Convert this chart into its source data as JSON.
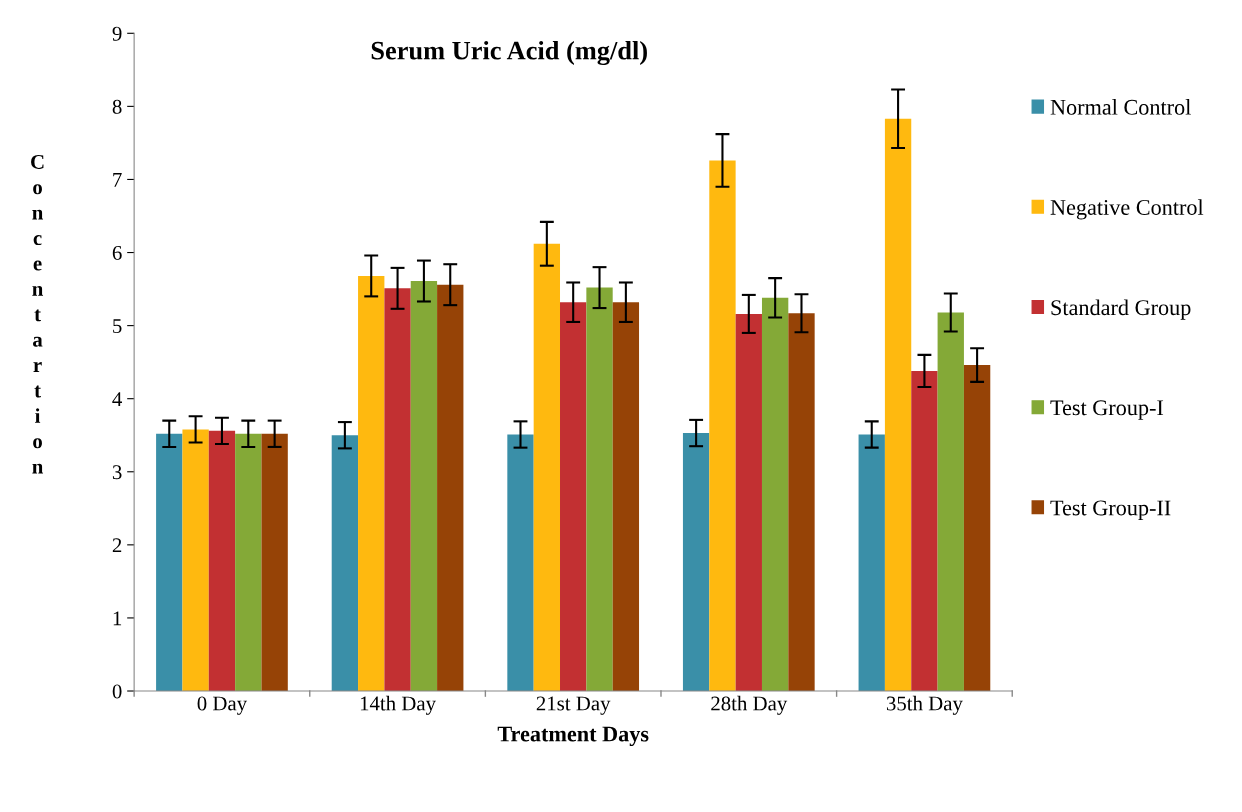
{
  "chart_data": {
    "type": "bar",
    "title": "Serum Uric Acid (mg/dl)",
    "xlabel": "Treatment Days",
    "ylabel": "Concentartion",
    "categories": [
      "0 Day",
      "14th Day",
      "21st Day",
      "28th Day",
      "35th Day"
    ],
    "series": [
      {
        "name": "Normal Control",
        "color": "#3a8fa8",
        "values": [
          3.52,
          3.5,
          3.51,
          3.53,
          3.51
        ],
        "errors": [
          0.18,
          0.18,
          0.18,
          0.18,
          0.18
        ]
      },
      {
        "name": "Negative Control",
        "color": "#ffb90f",
        "values": [
          3.58,
          5.68,
          6.12,
          7.26,
          7.83
        ],
        "errors": [
          0.18,
          0.28,
          0.3,
          0.36,
          0.4
        ]
      },
      {
        "name": "Standard Group",
        "color": "#c23032",
        "values": [
          3.56,
          5.51,
          5.32,
          5.16,
          4.38
        ],
        "errors": [
          0.18,
          0.28,
          0.27,
          0.26,
          0.22
        ]
      },
      {
        "name": "Test Group-I",
        "color": "#84a937",
        "values": [
          3.52,
          5.61,
          5.52,
          5.38,
          5.18
        ],
        "errors": [
          0.18,
          0.28,
          0.28,
          0.27,
          0.26
        ]
      },
      {
        "name": "Test Group-II",
        "color": "#964306",
        "values": [
          3.52,
          5.56,
          5.32,
          5.17,
          4.46
        ],
        "errors": [
          0.18,
          0.28,
          0.27,
          0.26,
          0.23
        ]
      }
    ],
    "ylim": [
      0,
      9
    ],
    "yticks": [
      0,
      1,
      2,
      3,
      4,
      5,
      6,
      7,
      8,
      9
    ],
    "grid": false,
    "legend": "right"
  }
}
